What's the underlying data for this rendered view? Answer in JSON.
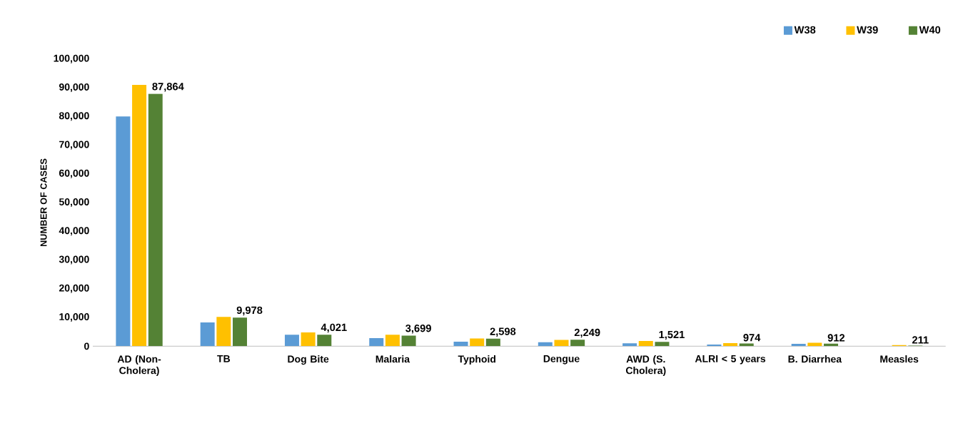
{
  "chart_data": {
    "type": "bar",
    "ylabel": "NUMBER OF CASES",
    "categories": [
      "AD (Non-Cholera)",
      "TB",
      "Dog Bite",
      "Malaria",
      "Typhoid",
      "Dengue",
      "AWD (S. Cholera)",
      "ALRI < 5 years",
      "B. Diarrhea",
      "Measles"
    ],
    "series": [
      {
        "name": "W38",
        "color": "#5b9bd5",
        "values": [
          80000,
          8300,
          4000,
          2800,
          1600,
          1400,
          1000,
          600,
          800,
          null
        ]
      },
      {
        "name": "W39",
        "color": "#ffc000",
        "values": [
          91000,
          10200,
          4800,
          4000,
          2700,
          2200,
          1800,
          1100,
          1200,
          400
        ]
      },
      {
        "name": "W40",
        "color": "#548235",
        "values": [
          87864,
          9978,
          4021,
          3699,
          2598,
          2249,
          1521,
          974,
          912,
          211
        ],
        "value_labels": [
          "87,864",
          "9,978",
          "4,021",
          "3,699",
          "2,598",
          "2,249",
          "1,521",
          "974",
          "912",
          "211"
        ]
      }
    ],
    "ylim": [
      0,
      100000
    ],
    "yticks": [
      0,
      {
        "value": 10000,
        "label": "10,000"
      },
      {
        "value": 20000,
        "label": "20,000"
      },
      {
        "value": 30000,
        "label": "30,000"
      },
      {
        "value": 40000,
        "label": "40,000"
      },
      {
        "value": 50000,
        "label": "50,000"
      },
      {
        "value": 60000,
        "label": "60,000"
      },
      {
        "value": 70000,
        "label": "70,000"
      },
      {
        "value": 80000,
        "label": "80,000"
      },
      {
        "value": 90000,
        "label": "90,000"
      },
      {
        "value": 100000,
        "label": "100,000"
      }
    ],
    "grid": false,
    "legend": "top right"
  }
}
